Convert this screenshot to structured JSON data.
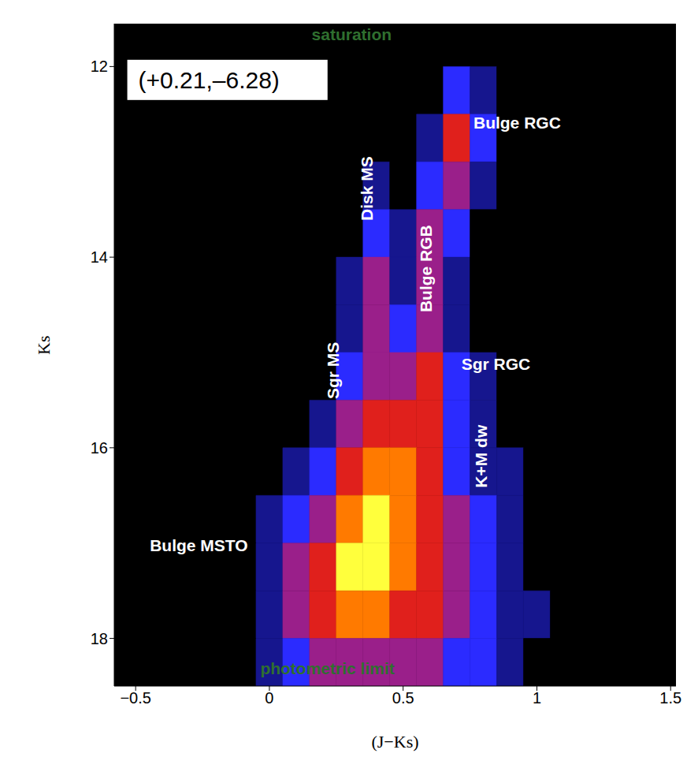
{
  "chart_data": {
    "type": "heatmap",
    "x_label": "(J−Ks)",
    "y_label": "Ks",
    "xlim": [
      -0.58,
      1.52
    ],
    "xticks": [
      {
        "value": -0.5,
        "label": "−0.5"
      },
      0,
      0.5,
      1,
      1.5
    ],
    "ylim": [
      11.55,
      18.5
    ],
    "yticks": [
      12,
      14,
      16,
      18
    ],
    "colors": [
      "#000000",
      "#16168e",
      "#2b2bff",
      "#9a1f8a",
      "#e0201c",
      "#ff7a00",
      "#ffff3c"
    ],
    "x_bins": [
      -0.15,
      -0.05,
      0.05,
      0.15,
      0.25,
      0.35,
      0.45,
      0.55,
      0.65,
      0.75,
      0.85,
      0.95,
      1.05,
      1.15,
      1.25
    ],
    "y_bins": [
      12.0,
      12.5,
      13.0,
      13.5,
      14.0,
      14.5,
      15.0,
      15.5,
      16.0,
      16.5,
      17.0,
      17.5,
      18.0,
      18.5
    ],
    "cells": [
      [
        0,
        0,
        0,
        0,
        0,
        0,
        0,
        0,
        2,
        1,
        0,
        0,
        0,
        0
      ],
      [
        0,
        0,
        0,
        0,
        0,
        0,
        0,
        1,
        4,
        2,
        0,
        0,
        0,
        0
      ],
      [
        0,
        0,
        0,
        0,
        0,
        1,
        0,
        2,
        3,
        1,
        0,
        0,
        0,
        0
      ],
      [
        0,
        0,
        0,
        0,
        0,
        2,
        1,
        3,
        2,
        0,
        0,
        0,
        0,
        0
      ],
      [
        0,
        0,
        0,
        0,
        1,
        3,
        1,
        3,
        1,
        0,
        0,
        0,
        0,
        0
      ],
      [
        0,
        0,
        0,
        0,
        1,
        3,
        2,
        3,
        1,
        0,
        0,
        0,
        0,
        0
      ],
      [
        0,
        0,
        0,
        0,
        2,
        3,
        3,
        4,
        2,
        1,
        0,
        0,
        0,
        0
      ],
      [
        0,
        0,
        0,
        1,
        3,
        4,
        4,
        4,
        2,
        1,
        0,
        0,
        0,
        0
      ],
      [
        0,
        0,
        1,
        2,
        4,
        5,
        5,
        4,
        2,
        1,
        1,
        0,
        0,
        0
      ],
      [
        0,
        1,
        2,
        3,
        5,
        6,
        5,
        4,
        3,
        2,
        1,
        0,
        0,
        0
      ],
      [
        0,
        1,
        3,
        4,
        6,
        6,
        5,
        4,
        3,
        2,
        1,
        0,
        0,
        0
      ],
      [
        0,
        1,
        3,
        4,
        5,
        5,
        4,
        4,
        3,
        2,
        1,
        1,
        0,
        0
      ],
      [
        0,
        1,
        2,
        3,
        3,
        3,
        3,
        3,
        2,
        2,
        1,
        0,
        0,
        0
      ]
    ],
    "annotations": [
      {
        "text": "(+0.21,–6.28)",
        "x": -0.49,
        "y": 12.14,
        "color": "#000000"
      },
      {
        "text": "saturation",
        "x": 0.158,
        "y": 11.66,
        "color": "#2f6f2f"
      },
      {
        "text": "photometric limit",
        "x": -0.034,
        "y": 18.31,
        "color": "#2f6f2f"
      },
      {
        "text": "Bulge RGC",
        "x": 0.763,
        "y": 12.59,
        "color": "#ffffff"
      },
      {
        "text": "Sgr RGC",
        "x": 0.718,
        "y": 15.12,
        "color": "#ffffff"
      },
      {
        "text": "Bulge MSTO",
        "x": -0.447,
        "y": 17.02,
        "color": "#ffffff"
      }
    ],
    "vertical_annotations": [
      {
        "text": "Disk MS",
        "x": 0.364,
        "y": 13.28,
        "color": "#ffffff"
      },
      {
        "text": "Bulge RGB",
        "x": 0.586,
        "y": 14.12,
        "color": "#ffffff"
      },
      {
        "text": "Sgr MS",
        "x": 0.237,
        "y": 15.19,
        "color": "#ffffff"
      },
      {
        "text": "K+M dw",
        "x": 0.792,
        "y": 16.09,
        "color": "#ffffff"
      }
    ]
  }
}
